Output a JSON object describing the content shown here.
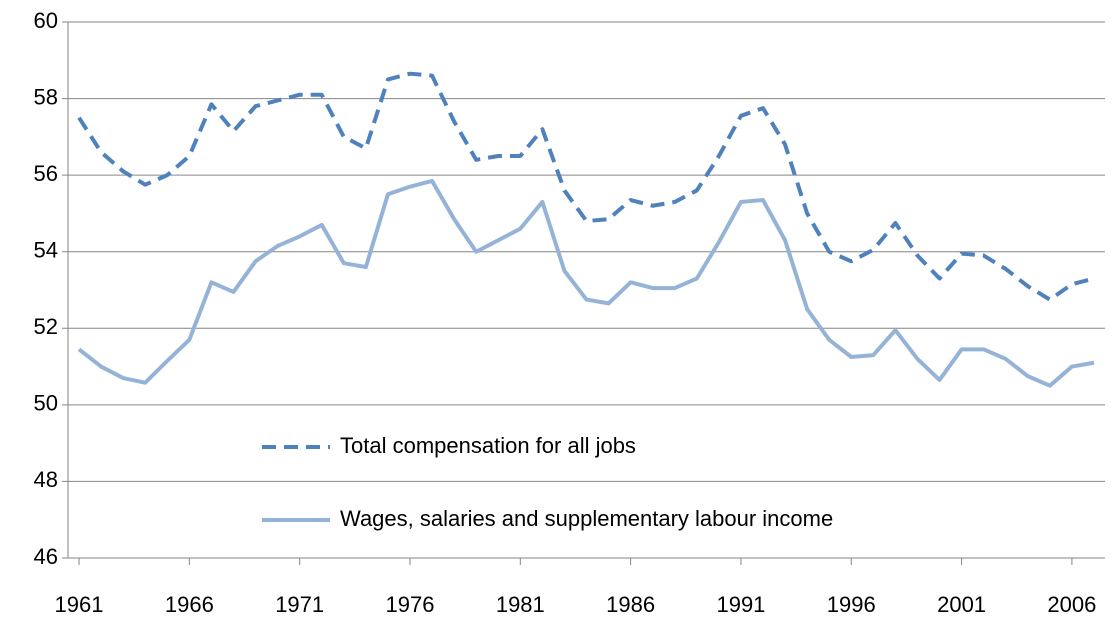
{
  "chart_data": {
    "type": "line",
    "x": [
      1961,
      1962,
      1963,
      1964,
      1965,
      1966,
      1967,
      1968,
      1969,
      1970,
      1971,
      1972,
      1973,
      1974,
      1975,
      1976,
      1977,
      1978,
      1979,
      1980,
      1981,
      1982,
      1983,
      1984,
      1985,
      1986,
      1987,
      1988,
      1989,
      1990,
      1991,
      1992,
      1993,
      1994,
      1995,
      1996,
      1997,
      1998,
      1999,
      2000,
      2001,
      2002,
      2003,
      2004,
      2005,
      2006,
      2007
    ],
    "series": [
      {
        "name": "Total compensation for all jobs",
        "color": "#4f81bd",
        "dash": true,
        "values": [
          57.5,
          56.6,
          56.1,
          55.75,
          56.0,
          56.5,
          57.85,
          57.15,
          57.8,
          57.95,
          58.1,
          58.1,
          57.0,
          56.7,
          58.5,
          58.65,
          58.6,
          57.4,
          56.4,
          56.5,
          56.5,
          57.2,
          55.6,
          54.8,
          54.85,
          55.35,
          55.2,
          55.3,
          55.6,
          56.5,
          57.55,
          57.75,
          56.8,
          55.0,
          54.0,
          53.75,
          54.05,
          54.75,
          53.9,
          53.3,
          53.95,
          53.9,
          53.55,
          53.1,
          52.75,
          53.15,
          53.3
        ]
      },
      {
        "name": "Wages, salaries and supplementary labour income",
        "color": "#95b3d7",
        "dash": false,
        "values": [
          51.45,
          51.0,
          50.7,
          50.58,
          51.15,
          51.7,
          53.2,
          52.95,
          53.75,
          54.15,
          54.4,
          54.7,
          53.7,
          53.6,
          55.5,
          55.7,
          55.85,
          54.85,
          54.0,
          54.3,
          54.6,
          55.3,
          53.5,
          52.75,
          52.65,
          53.2,
          53.05,
          53.05,
          53.3,
          54.25,
          55.3,
          55.35,
          54.3,
          52.5,
          51.7,
          51.25,
          51.3,
          51.95,
          51.2,
          50.65,
          51.45,
          51.45,
          51.2,
          50.75,
          50.5,
          51.0,
          51.1
        ]
      }
    ],
    "xlim": [
      1960.5,
      2007.5
    ],
    "xticks": [
      1961,
      1966,
      1971,
      1976,
      1981,
      1986,
      1991,
      1996,
      2001,
      2006
    ],
    "ylim": [
      46,
      60
    ],
    "yticks": [
      46,
      48,
      50,
      52,
      54,
      56,
      58,
      60
    ],
    "grid": true
  }
}
